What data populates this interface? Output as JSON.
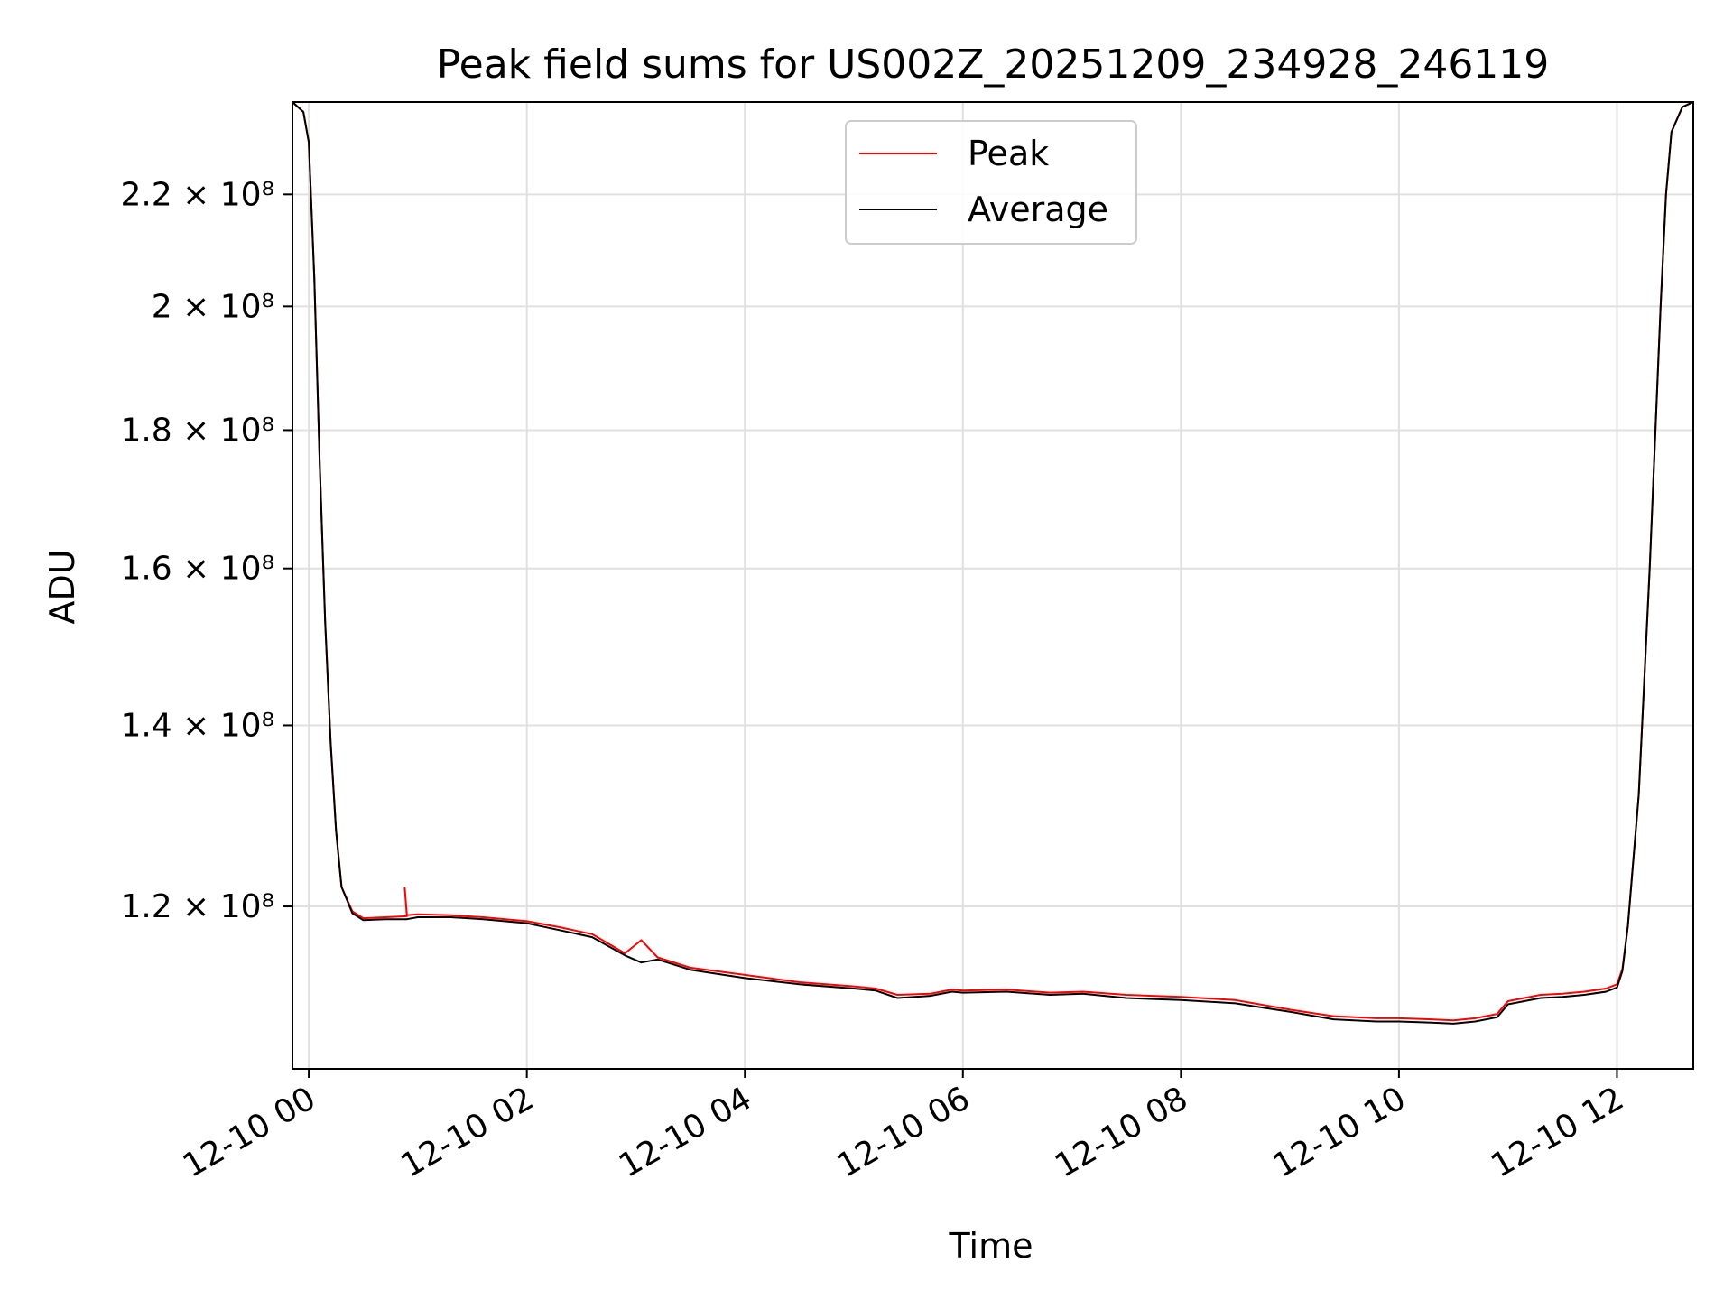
{
  "chart_data": {
    "type": "line",
    "title": "Peak field sums for US002Z_20251209_234928_246119",
    "xlabel": "Time",
    "ylabel": "ADU",
    "y_scale": "log",
    "xlim_hours": [
      -0.15,
      12.7
    ],
    "ylim": [
      104500000,
      238000000
    ],
    "grid": true,
    "legend_position": "top-center",
    "x_ticks": [
      {
        "value": 0,
        "label": "12-10 00"
      },
      {
        "value": 2,
        "label": "12-10 02"
      },
      {
        "value": 4,
        "label": "12-10 04"
      },
      {
        "value": 6,
        "label": "12-10 06"
      },
      {
        "value": 8,
        "label": "12-10 08"
      },
      {
        "value": 10,
        "label": "12-10 10"
      },
      {
        "value": 12,
        "label": "12-10 12"
      }
    ],
    "y_ticks": [
      {
        "value": 120000000,
        "label": "1.2 × 10⁸"
      },
      {
        "value": 140000000,
        "label": "1.4 × 10⁸"
      },
      {
        "value": 160000000,
        "label": "1.6 × 10⁸"
      },
      {
        "value": 180000000,
        "label": "1.8 × 10⁸"
      },
      {
        "value": 200000000,
        "label": "2 × 10⁸"
      },
      {
        "value": 220000000,
        "label": "2.2 × 10⁸"
      }
    ],
    "series": [
      {
        "name": "Peak",
        "color": "#ff0000",
        "x_hours": [
          -0.15,
          -0.05,
          0.0,
          0.05,
          0.1,
          0.15,
          0.2,
          0.25,
          0.3,
          0.4,
          0.5,
          0.7,
          0.9,
          0.88,
          0.9,
          1.0,
          1.3,
          1.6,
          2.0,
          2.3,
          2.6,
          2.9,
          3.05,
          3.2,
          3.5,
          4.0,
          4.5,
          5.0,
          5.2,
          5.4,
          5.7,
          5.9,
          6.0,
          6.4,
          6.8,
          7.1,
          7.5,
          8.0,
          8.5,
          9.0,
          9.4,
          9.8,
          10.0,
          10.3,
          10.5,
          10.7,
          10.9,
          11.0,
          11.3,
          11.5,
          11.7,
          11.9,
          12.0,
          12.05,
          12.1,
          12.2,
          12.3,
          12.4,
          12.45,
          12.5,
          12.6,
          12.7
        ],
        "values": [
          238000000,
          236000000,
          230000000,
          205000000,
          175000000,
          153000000,
          138000000,
          128000000,
          122000000,
          119500000,
          118800000,
          118900000,
          119000000,
          121900000,
          119100000,
          119200000,
          119100000,
          118900000,
          118500000,
          117900000,
          117200000,
          115300000,
          116600000,
          114900000,
          113900000,
          113200000,
          112500000,
          112100000,
          111900000,
          111300000,
          111400000,
          111800000,
          111700000,
          111800000,
          111500000,
          111600000,
          111300000,
          111100000,
          110800000,
          109900000,
          109300000,
          109100000,
          109100000,
          109000000,
          108900000,
          109100000,
          109500000,
          110700000,
          111300000,
          111400000,
          111600000,
          111900000,
          112300000,
          113800000,
          118000000,
          132000000,
          160000000,
          200000000,
          220000000,
          232000000,
          237000000,
          238000000
        ]
      },
      {
        "name": "Average",
        "color": "#000000",
        "x_hours": [
          -0.15,
          -0.05,
          0.0,
          0.05,
          0.1,
          0.15,
          0.2,
          0.25,
          0.3,
          0.4,
          0.5,
          0.7,
          0.9,
          1.0,
          1.3,
          1.6,
          2.0,
          2.3,
          2.6,
          2.9,
          3.05,
          3.2,
          3.5,
          4.0,
          4.5,
          5.0,
          5.2,
          5.4,
          5.7,
          5.9,
          6.0,
          6.4,
          6.8,
          7.1,
          7.5,
          8.0,
          8.5,
          9.0,
          9.4,
          9.8,
          10.0,
          10.3,
          10.5,
          10.7,
          10.9,
          11.0,
          11.3,
          11.5,
          11.7,
          11.9,
          12.0,
          12.05,
          12.1,
          12.2,
          12.3,
          12.4,
          12.45,
          12.5,
          12.6,
          12.7
        ],
        "values": [
          238000000,
          236000000,
          230000000,
          205000000,
          175000000,
          153000000,
          138000000,
          128000000,
          122000000,
          119300000,
          118600000,
          118700000,
          118700000,
          118900000,
          118900000,
          118700000,
          118300000,
          117600000,
          116900000,
          115100000,
          114400000,
          114700000,
          113700000,
          112900000,
          112300000,
          111900000,
          111700000,
          111000000,
          111200000,
          111600000,
          111500000,
          111600000,
          111300000,
          111400000,
          111000000,
          110800000,
          110500000,
          109700000,
          109000000,
          108800000,
          108800000,
          108700000,
          108600000,
          108800000,
          109200000,
          110400000,
          111000000,
          111100000,
          111300000,
          111600000,
          112000000,
          113600000,
          118000000,
          132000000,
          160000000,
          200000000,
          220000000,
          232000000,
          237000000,
          238000000
        ]
      }
    ]
  }
}
